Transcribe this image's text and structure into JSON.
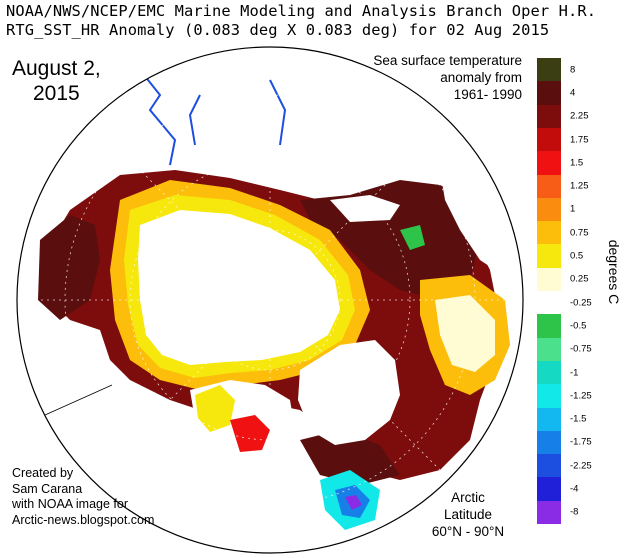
{
  "header": {
    "line1": "NOAA/NWS/NCEP/EMC Marine Modeling and Analysis Branch Oper H.R.",
    "line2": "RTG_SST_HR Anomaly (0.083 deg X 0.083 deg) for 02 Aug 2015"
  },
  "overlay": {
    "date_line1": "August 2,",
    "date_line2": "2015",
    "anomaly_line1": "Sea surface temperature",
    "anomaly_line2": "anomaly from",
    "anomaly_line3": "1961- 1990",
    "credit_line1": "Created by",
    "credit_line2": "Sam Carana",
    "credit_line3": "with NOAA image for",
    "credit_line4": "Arctic-news.blogspot.com",
    "region_line1": "Arctic",
    "region_line2": "Latitude",
    "region_line3": "60°N - 90°N"
  },
  "legend": {
    "units": "degrees C",
    "bins": [
      {
        "label": "8",
        "color": "#3b3d13"
      },
      {
        "label": "4",
        "color": "#5a0e0e"
      },
      {
        "label": "2.25",
        "color": "#7d0d0d"
      },
      {
        "label": "1.75",
        "color": "#c20b0b"
      },
      {
        "label": "1.5",
        "color": "#f01212"
      },
      {
        "label": "1.25",
        "color": "#f75d16"
      },
      {
        "label": "1",
        "color": "#fa8d10"
      },
      {
        "label": "0.75",
        "color": "#fcbd0b"
      },
      {
        "label": "0.5",
        "color": "#f6e80c"
      },
      {
        "label": "0.25",
        "color": "#fffbd2"
      },
      {
        "label": "-0.25",
        "color": "#ffffff"
      },
      {
        "label": "-0.5",
        "color": "#2ec44a"
      },
      {
        "label": "-0.75",
        "color": "#4be08b"
      },
      {
        "label": "-1",
        "color": "#16d9c4"
      },
      {
        "label": "-1.25",
        "color": "#12e8e8"
      },
      {
        "label": "-1.5",
        "color": "#13b8f0"
      },
      {
        "label": "-1.75",
        "color": "#1680e8"
      },
      {
        "label": "-2.25",
        "color": "#1c4ee0"
      },
      {
        "label": "-4",
        "color": "#2020d8"
      },
      {
        "label": "-8",
        "color": "#8a2ce6"
      }
    ]
  },
  "map": {
    "colors": {
      "land": "#ffffff",
      "ocean_warm": "#7d0d0d",
      "ocean_hot": "#5a0e0e",
      "sea_ice": "#ffffff",
      "ice_edge": "#fcbd0b",
      "near_zero": "#f6e80c",
      "cool": "#12e8e8"
    }
  }
}
